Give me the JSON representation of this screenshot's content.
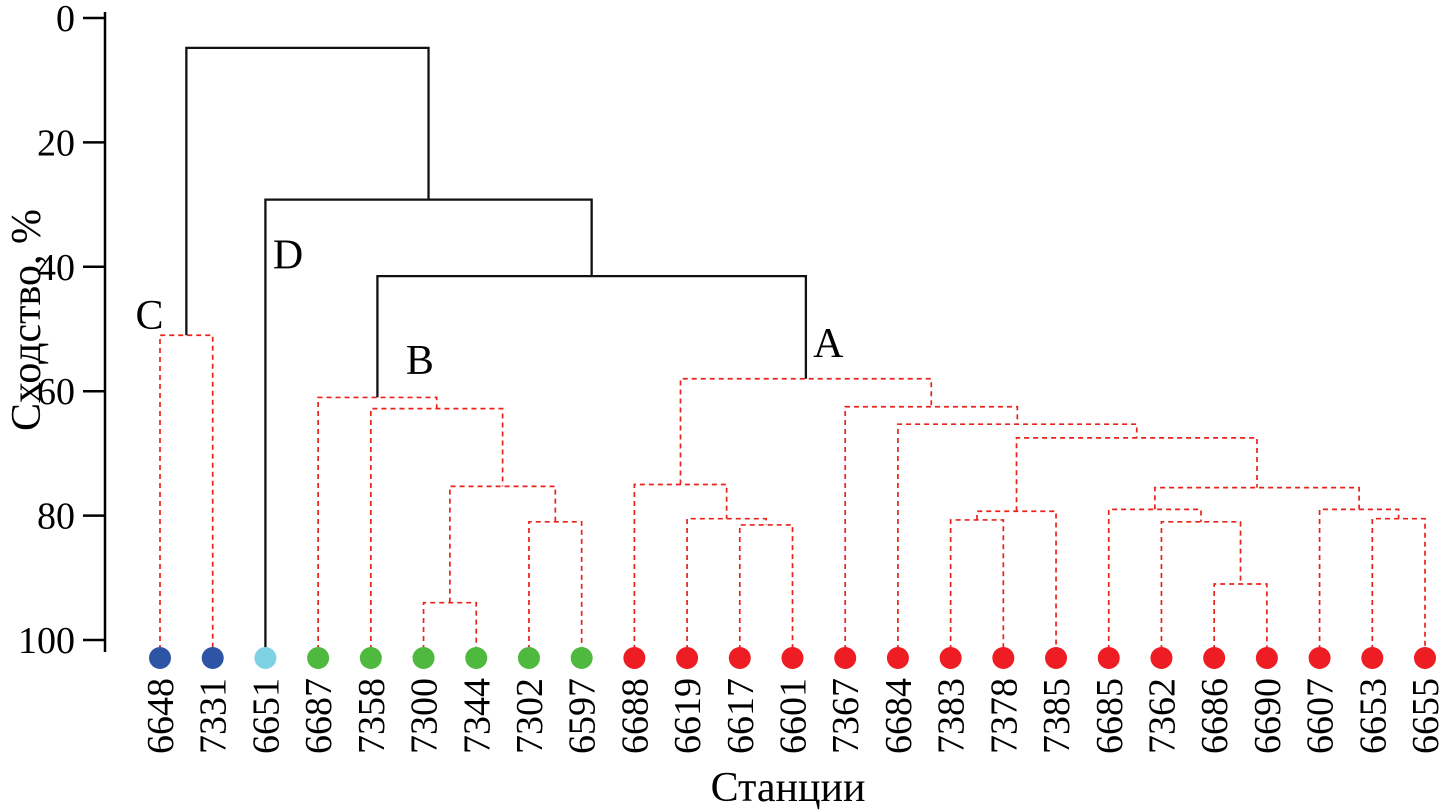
{
  "chart_data": {
    "type": "dendrogram",
    "title": "",
    "xlabel": "Станции",
    "ylabel": "Сходство, %",
    "y_axis": {
      "min": 0,
      "max": 100,
      "ticks": [
        0,
        20,
        40,
        60,
        80,
        100
      ],
      "direction": "inverted",
      "unit": "%"
    },
    "group_colors": {
      "blue": "#2e55a5",
      "cyan": "#7fd2e4",
      "green": "#4fb83e",
      "red": "#ee1c23"
    },
    "line_colors": {
      "within": "#e8231a",
      "between": "#111111"
    },
    "stations": [
      {
        "label": "6648",
        "group": "blue"
      },
      {
        "label": "7331",
        "group": "blue"
      },
      {
        "label": "6651",
        "group": "cyan"
      },
      {
        "label": "6687",
        "group": "green"
      },
      {
        "label": "7358",
        "group": "green"
      },
      {
        "label": "7300",
        "group": "green"
      },
      {
        "label": "7344",
        "group": "green"
      },
      {
        "label": "7302",
        "group": "green"
      },
      {
        "label": "6597",
        "group": "green"
      },
      {
        "label": "6688",
        "group": "red"
      },
      {
        "label": "6619",
        "group": "red"
      },
      {
        "label": "6617",
        "group": "red"
      },
      {
        "label": "6601",
        "group": "red"
      },
      {
        "label": "7367",
        "group": "red"
      },
      {
        "label": "6684",
        "group": "red"
      },
      {
        "label": "7383",
        "group": "red"
      },
      {
        "label": "7378",
        "group": "red"
      },
      {
        "label": "7385",
        "group": "red"
      },
      {
        "label": "6685",
        "group": "red"
      },
      {
        "label": "7362",
        "group": "red"
      },
      {
        "label": "6686",
        "group": "red"
      },
      {
        "label": "6690",
        "group": "red"
      },
      {
        "label": "6607",
        "group": "red"
      },
      {
        "label": "6653",
        "group": "red"
      },
      {
        "label": "6655",
        "group": "red"
      }
    ],
    "merges": [
      {
        "id": "C1",
        "left": "6648",
        "right": "7331",
        "similarity": 51,
        "style": "within"
      },
      {
        "id": "B1",
        "left": "7300",
        "right": "7344",
        "similarity": 94,
        "style": "within"
      },
      {
        "id": "B2",
        "left": "7302",
        "right": "6597",
        "similarity": 81,
        "style": "within"
      },
      {
        "id": "B3",
        "left": "B1",
        "right": "B2",
        "similarity": 75.3,
        "style": "within"
      },
      {
        "id": "B4",
        "left": "7358",
        "right": "B3",
        "similarity": 62.8,
        "style": "within"
      },
      {
        "id": "B5",
        "left": "6687",
        "right": "B4",
        "similarity": 61,
        "style": "within"
      },
      {
        "id": "A1",
        "left": "6617",
        "right": "6601",
        "similarity": 81.5,
        "style": "within"
      },
      {
        "id": "A2",
        "left": "6619",
        "right": "A1",
        "similarity": 80.5,
        "style": "within"
      },
      {
        "id": "A3",
        "left": "6688",
        "right": "A2",
        "similarity": 75,
        "style": "within"
      },
      {
        "id": "A4",
        "left": "6686",
        "right": "6690",
        "similarity": 91,
        "style": "within"
      },
      {
        "id": "A5",
        "left": "7362",
        "right": "A4",
        "similarity": 81,
        "style": "within"
      },
      {
        "id": "A6",
        "left": "6685",
        "right": "A5",
        "similarity": 79,
        "style": "within"
      },
      {
        "id": "A7",
        "left": "6653",
        "right": "6655",
        "similarity": 80.5,
        "style": "within"
      },
      {
        "id": "A8",
        "left": "6607",
        "right": "A7",
        "similarity": 79,
        "style": "within"
      },
      {
        "id": "A9",
        "left": "A6",
        "right": "A8",
        "similarity": 75.5,
        "style": "within"
      },
      {
        "id": "A10",
        "left": "7383",
        "right": "7378",
        "similarity": 80.7,
        "style": "within"
      },
      {
        "id": "A11",
        "left": "A10",
        "right": "7385",
        "similarity": 79.3,
        "style": "within"
      },
      {
        "id": "A12",
        "left": "A11",
        "right": "A9",
        "similarity": 67.5,
        "style": "within"
      },
      {
        "id": "A13",
        "left": "6684",
        "right": "A12",
        "similarity": 65.3,
        "style": "within"
      },
      {
        "id": "A14",
        "left": "7367",
        "right": "A13",
        "similarity": 62.5,
        "style": "within"
      },
      {
        "id": "A15",
        "left": "A3",
        "right": "A14",
        "similarity": 58,
        "style": "within"
      },
      {
        "id": "T1",
        "left": "B5",
        "right": "A15",
        "similarity": 41.5,
        "style": "between"
      },
      {
        "id": "T2",
        "left": "6651",
        "right": "T1",
        "similarity": 29.2,
        "style": "between"
      },
      {
        "id": "T3",
        "left": "C1",
        "right": "T2",
        "similarity": 4.8,
        "style": "between"
      }
    ],
    "cluster_labels": [
      {
        "text": "C",
        "x_station": -0.2,
        "similarity": 50
      },
      {
        "text": "D",
        "x_station": 2.43,
        "similarity": 40.3
      },
      {
        "text": "B",
        "x_station": 4.93,
        "similarity": 57.2
      },
      {
        "text": "A",
        "x_station": 12.68,
        "similarity": 54.5
      }
    ]
  }
}
